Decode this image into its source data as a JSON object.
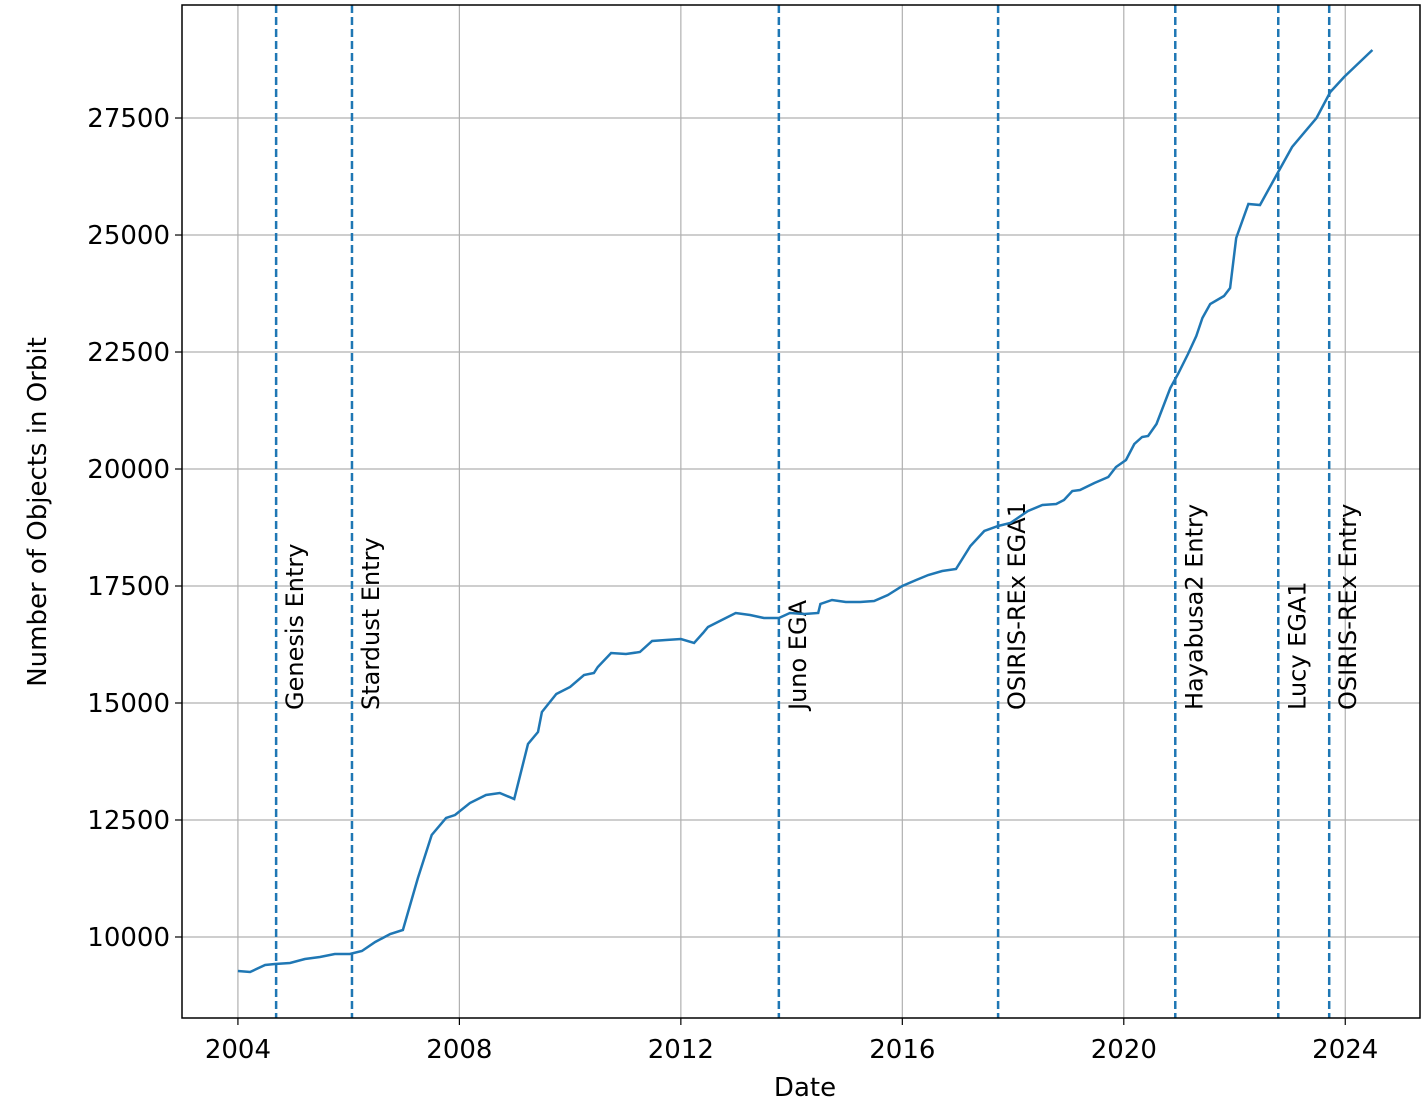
{
  "chart_data": {
    "type": "line",
    "xlabel": "Date",
    "ylabel": "Number of Objects in Orbit",
    "color": "#1f77b4",
    "grid": true,
    "xlim": [
      2002.99,
      2025.35
    ],
    "xticks": [
      2004,
      2008,
      2012,
      2016,
      2020,
      2024
    ],
    "ylim": [
      8269,
      29915
    ],
    "yticks": [
      10000,
      12500,
      15000,
      17500,
      20000,
      22500,
      25000,
      27500
    ],
    "x": [
      2004.0,
      2004.22,
      2004.49,
      2004.67,
      2004.94,
      2005.21,
      2005.48,
      2005.75,
      2006.02,
      2006.24,
      2006.48,
      2006.75,
      2006.98,
      2007.25,
      2007.5,
      2007.76,
      2007.92,
      2008.19,
      2008.48,
      2008.73,
      2008.99,
      2009.24,
      2009.42,
      2009.49,
      2009.75,
      2010.0,
      2010.25,
      2010.43,
      2010.5,
      2010.74,
      2011.01,
      2011.26,
      2011.48,
      2011.73,
      2012.0,
      2012.24,
      2012.4,
      2012.49,
      2012.74,
      2012.99,
      2013.25,
      2013.5,
      2013.77,
      2013.97,
      2014.23,
      2014.48,
      2014.52,
      2014.73,
      2014.98,
      2015.24,
      2015.49,
      2015.74,
      2016.0,
      2016.25,
      2016.47,
      2016.72,
      2016.97,
      2017.23,
      2017.48,
      2017.73,
      2017.95,
      2018.27,
      2018.53,
      2018.78,
      2018.92,
      2019.07,
      2019.21,
      2019.47,
      2019.72,
      2019.86,
      2020.04,
      2020.19,
      2020.33,
      2020.44,
      2020.59,
      2020.84,
      2020.98,
      2021.16,
      2021.31,
      2021.42,
      2021.56,
      2021.81,
      2021.92,
      2022.03,
      2022.25,
      2022.46,
      2022.75,
      2023.04,
      2023.48,
      2023.73,
      2023.98,
      2024.49
    ],
    "values": [
      9274,
      9252,
      9402,
      9423,
      9444,
      9530,
      9573,
      9637,
      9637,
      9701,
      9893,
      10064,
      10150,
      11261,
      12179,
      12543,
      12607,
      12863,
      13034,
      13077,
      12949,
      14124,
      14380,
      14808,
      15192,
      15342,
      15598,
      15641,
      15769,
      16068,
      16047,
      16090,
      16325,
      16346,
      16368,
      16282,
      16496,
      16624,
      16774,
      16923,
      16880,
      16816,
      16816,
      16923,
      16902,
      16923,
      17115,
      17201,
      17158,
      17158,
      17179,
      17308,
      17500,
      17628,
      17735,
      17821,
      17863,
      18355,
      18675,
      18782,
      18846,
      19103,
      19231,
      19252,
      19338,
      19530,
      19551,
      19701,
      19829,
      20043,
      20192,
      20534,
      20684,
      20705,
      20962,
      21731,
      22030,
      22457,
      22842,
      23226,
      23526,
      23697,
      23868,
      24936,
      25662,
      25641,
      26261,
      26880,
      27500,
      28056,
      28376,
      28953
    ],
    "events": [
      {
        "label": "Genesis Entry",
        "x": 2004.69
      },
      {
        "label": "Stardust Entry",
        "x": 2006.06
      },
      {
        "label": "Juno EGA",
        "x": 2013.77
      },
      {
        "label": "OSIRIS-REx EGA1",
        "x": 2017.73
      },
      {
        "label": "Hayabusa2 Entry",
        "x": 2020.93
      },
      {
        "label": "Lucy EGA1",
        "x": 2022.79
      },
      {
        "label": "OSIRIS-REx Entry",
        "x": 2023.71
      }
    ]
  }
}
